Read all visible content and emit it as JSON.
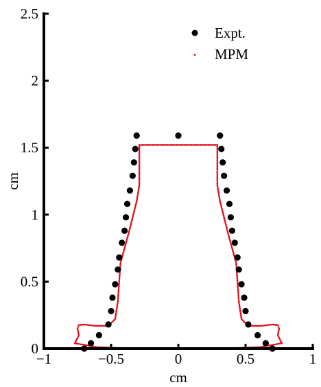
{
  "chart_data": {
    "type": "scatter",
    "title": "",
    "xlabel": "cm",
    "ylabel": "cm",
    "xlim": [
      -1,
      1
    ],
    "ylim": [
      0,
      2.5
    ],
    "x_ticks": [
      "−1",
      "−0.5",
      "0",
      "0.5",
      "1"
    ],
    "x_tick_values": [
      -1,
      -0.5,
      0,
      0.5,
      1
    ],
    "y_ticks": [
      "0",
      "0.5",
      "1",
      "1.5",
      "2",
      "2.5"
    ],
    "y_tick_values": [
      0,
      0.5,
      1,
      1.5,
      2,
      2.5
    ],
    "grid": false,
    "legend_placement": "top-right",
    "series": [
      {
        "name": "Expt.",
        "style": "black-dots",
        "color": "#000000",
        "points": [
          [
            -0.31,
            1.59
          ],
          [
            0.0,
            1.59
          ],
          [
            0.31,
            1.59
          ],
          [
            -0.32,
            1.49
          ],
          [
            0.32,
            1.49
          ],
          [
            -0.33,
            1.39
          ],
          [
            0.33,
            1.39
          ],
          [
            -0.34,
            1.29
          ],
          [
            0.34,
            1.29
          ],
          [
            -0.36,
            1.18
          ],
          [
            0.36,
            1.18
          ],
          [
            -0.38,
            1.08
          ],
          [
            0.38,
            1.08
          ],
          [
            -0.39,
            0.98
          ],
          [
            0.39,
            0.98
          ],
          [
            -0.4,
            0.88
          ],
          [
            0.4,
            0.88
          ],
          [
            -0.42,
            0.79
          ],
          [
            0.42,
            0.79
          ],
          [
            -0.44,
            0.68
          ],
          [
            0.44,
            0.68
          ],
          [
            -0.45,
            0.59
          ],
          [
            0.45,
            0.59
          ],
          [
            -0.47,
            0.48
          ],
          [
            0.47,
            0.48
          ],
          [
            -0.49,
            0.38
          ],
          [
            0.49,
            0.38
          ],
          [
            -0.5,
            0.28
          ],
          [
            0.5,
            0.28
          ],
          [
            -0.52,
            0.18
          ],
          [
            0.52,
            0.18
          ],
          [
            -0.59,
            0.1
          ],
          [
            0.59,
            0.1
          ],
          [
            -0.65,
            0.04
          ],
          [
            0.65,
            0.04
          ],
          [
            -0.7,
            0.0
          ],
          [
            0.7,
            0.0
          ]
        ]
      },
      {
        "name": "MPM",
        "style": "red-dotted-line",
        "color": "#e0101a",
        "outline": [
          [
            -0.77,
            0.04
          ],
          [
            -0.74,
            0.1
          ],
          [
            -0.75,
            0.15
          ],
          [
            -0.74,
            0.175
          ],
          [
            -0.7,
            0.18
          ],
          [
            -0.62,
            0.17
          ],
          [
            -0.52,
            0.17
          ],
          [
            -0.47,
            0.22
          ],
          [
            -0.45,
            0.35
          ],
          [
            -0.44,
            0.5
          ],
          [
            -0.43,
            0.64
          ],
          [
            -0.4,
            0.75
          ],
          [
            -0.37,
            0.86
          ],
          [
            -0.34,
            0.98
          ],
          [
            -0.31,
            1.1
          ],
          [
            -0.29,
            1.22
          ],
          [
            -0.29,
            1.38
          ],
          [
            -0.29,
            1.52
          ],
          [
            0.29,
            1.52
          ],
          [
            0.29,
            1.38
          ],
          [
            0.29,
            1.22
          ],
          [
            0.31,
            1.1
          ],
          [
            0.34,
            0.98
          ],
          [
            0.37,
            0.86
          ],
          [
            0.4,
            0.75
          ],
          [
            0.43,
            0.64
          ],
          [
            0.44,
            0.5
          ],
          [
            0.45,
            0.35
          ],
          [
            0.47,
            0.22
          ],
          [
            0.52,
            0.17
          ],
          [
            0.62,
            0.17
          ],
          [
            0.7,
            0.18
          ],
          [
            0.74,
            0.175
          ],
          [
            0.75,
            0.15
          ],
          [
            0.74,
            0.1
          ],
          [
            0.77,
            0.04
          ],
          [
            0.6,
            0.01
          ],
          [
            0.3,
            0.0
          ],
          [
            0.0,
            0.0
          ],
          [
            -0.3,
            0.0
          ],
          [
            -0.6,
            0.01
          ],
          [
            -0.77,
            0.04
          ]
        ]
      }
    ]
  },
  "legend": {
    "items": [
      {
        "label": "Expt."
      },
      {
        "label": "MPM"
      }
    ]
  }
}
